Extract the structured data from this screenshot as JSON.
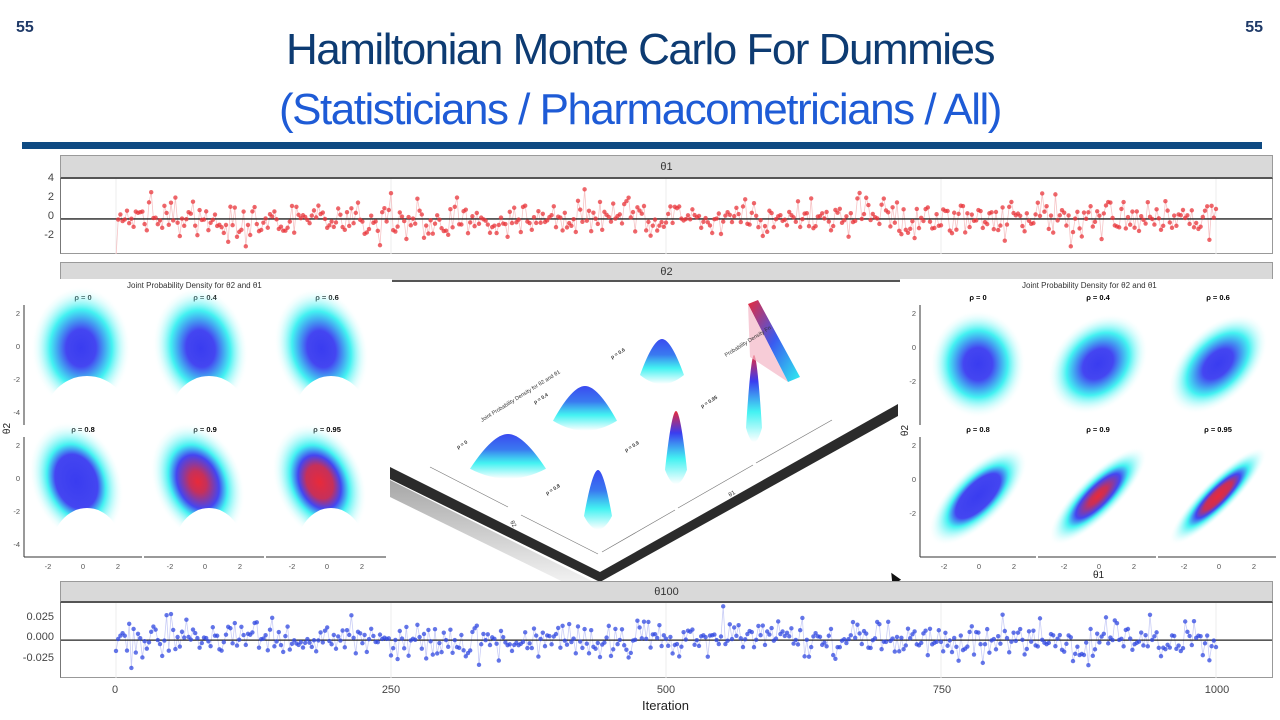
{
  "slide": {
    "page_number_left": "55",
    "page_number_right": "55",
    "title": "Hamiltonian Monte Carlo For Dummies",
    "subtitle": "(Statisticians / Pharmacometricians / All)",
    "rule_color": "#0e4a82",
    "title_color": "#0d3b72",
    "subtitle_color": "#1e5bd6"
  },
  "chart_data": [
    {
      "type": "scatter",
      "title": "θ1",
      "facet_label": "θ1",
      "xlabel": "Iteration",
      "ylabel": "",
      "xlim": [
        0,
        1000
      ],
      "ylim": [
        -3.5,
        4
      ],
      "yticks": [
        "4",
        "2",
        "0",
        "-2"
      ],
      "series": [
        {
          "name": "θ1 trace",
          "color": "#e8343a",
          "description": "MCMC trace of 1000 iterations, values mostly between -2.5 and 2.5, centered at 0, max ~3.7, min ~-3.3"
        }
      ],
      "reference_line_y": 0,
      "grid": true
    },
    {
      "type": "heatmap",
      "facet_label": "θ2",
      "title": "Joint Probability Density for θ2 and θ1",
      "panels": [
        "ρ = 0",
        "ρ = 0.4",
        "ρ = 0.6",
        "ρ = 0.8",
        "ρ = 0.9",
        "ρ = 0.95"
      ],
      "xlabel": "θ1",
      "ylabel": "θ2",
      "xticks": [
        "-2",
        "0",
        "2"
      ],
      "yticks": [
        "2",
        "0",
        "-2",
        "-4"
      ],
      "shape": "banana (curved) distribution",
      "colors": [
        "#ffffff",
        "#2ef0f0",
        "#3a3cf0",
        "#e82a3a"
      ]
    },
    {
      "type": "heatmap",
      "title": "Joint Probability Density for θ2 and θ1 (3D isometric view)",
      "panels": [
        "ρ = 0",
        "ρ = 0.4",
        "ρ = 0.6",
        "ρ = 0.8",
        "ρ = 0.9",
        "ρ = 0.95"
      ],
      "xlabel": "θ1",
      "ylabel": "θ2",
      "legend": "Probability Density Fn",
      "colors": [
        "#2ef0f0",
        "#3a3cf0",
        "#e82a3a"
      ]
    },
    {
      "type": "heatmap",
      "title": "Joint Probability Density for θ2 and θ1",
      "panels": [
        "ρ = 0",
        "ρ = 0.4",
        "ρ = 0.6",
        "ρ = 0.8",
        "ρ = 0.9",
        "ρ = 0.95"
      ],
      "xlabel": "θ1",
      "ylabel": "θ2",
      "xticks": [
        "-2",
        "0",
        "2"
      ],
      "yticks": [
        "2",
        "0",
        "-2"
      ],
      "shape": "bivariate normal, elongating along diagonal with ρ",
      "colors": [
        "#ffffff",
        "#2ef0f0",
        "#3a3cf0",
        "#e82a3a"
      ]
    },
    {
      "type": "scatter",
      "title": "θ100",
      "facet_label": "θ100",
      "xlabel": "Iteration",
      "ylabel": "",
      "xlim": [
        0,
        1000
      ],
      "ylim": [
        -0.045,
        0.042
      ],
      "xticks": [
        "0",
        "250",
        "500",
        "750",
        "1000"
      ],
      "yticks": [
        "0.025",
        "0.000",
        "-0.025"
      ],
      "series": [
        {
          "name": "θ100 trace",
          "color": "#3048e0",
          "description": "MCMC trace of 1000 iterations, values mostly between -0.03 and 0.03, max ~0.038, min ~-0.043"
        }
      ],
      "reference_line_y": 0,
      "grid": true
    }
  ],
  "top_plot": {
    "strip": "θ1",
    "yticks": [
      "4",
      "2",
      "0",
      "-2"
    ]
  },
  "mid_strip": "θ2",
  "left_density": {
    "title": "Joint Probability Density for θ2 and θ1",
    "panels": [
      "ρ = 0",
      "ρ = 0.4",
      "ρ = 0.6",
      "ρ = 0.8",
      "ρ = 0.9",
      "ρ = 0.95"
    ],
    "ylabel": "θ2",
    "xlabel": "θ1",
    "yticks": [
      "2",
      "0",
      "-2",
      "-4"
    ],
    "xticks": [
      "-2",
      "0",
      "2"
    ]
  },
  "right_density": {
    "title": "Joint Probability Density for θ2 and θ1",
    "panels": [
      "ρ = 0",
      "ρ = 0.4",
      "ρ = 0.6",
      "ρ = 0.8",
      "ρ = 0.9",
      "ρ = 0.95"
    ],
    "ylabel": "θ2",
    "xlabel": "θ1",
    "yticks": [
      "2",
      "0",
      "-2"
    ],
    "xticks": [
      "-2",
      "0",
      "2"
    ]
  },
  "center_3d": {
    "title": "Joint Probability Density for θ2 and θ1",
    "panels": [
      "ρ = 0",
      "ρ = 0.4",
      "ρ = 0.6",
      "ρ = 0.8",
      "ρ = 0.9",
      "ρ = 0.95"
    ],
    "legend": "Probability Density Fn",
    "xlabel": "θ1",
    "ylabel": "θ2"
  },
  "bottom_plot": {
    "strip": "θ100",
    "yticks": [
      "0.025",
      "0.000",
      "-0.025"
    ],
    "xticks": [
      "0",
      "250",
      "500",
      "750",
      "1000"
    ],
    "xlabel": "Iteration"
  }
}
